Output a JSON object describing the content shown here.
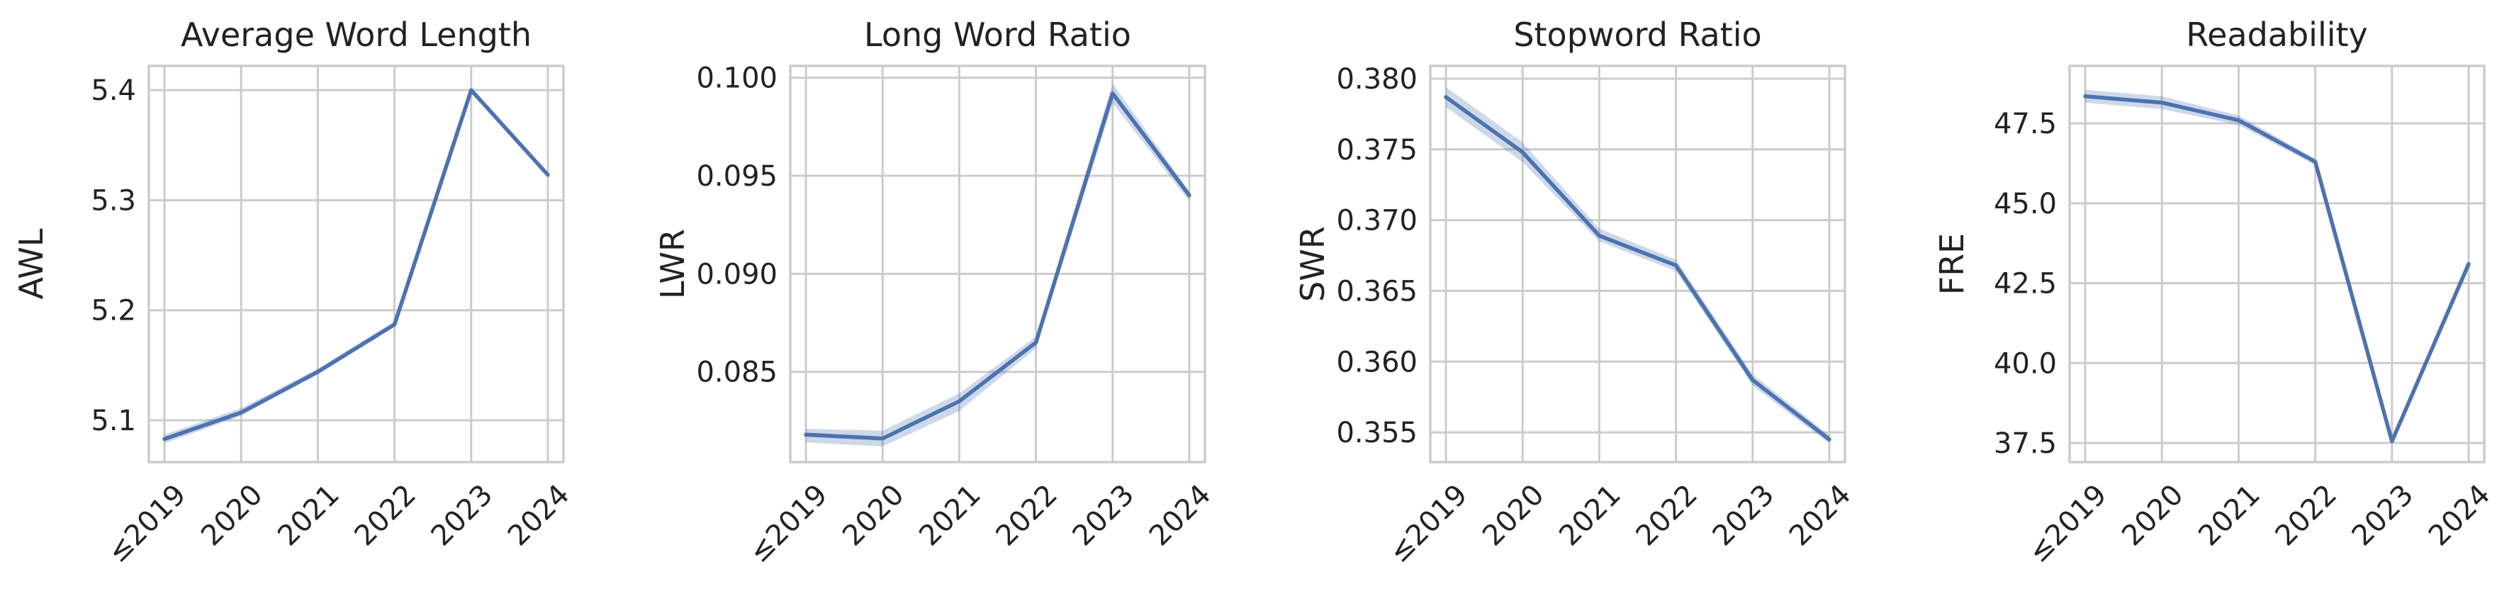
{
  "figure": {
    "line_color": "#4c72b0",
    "band_color": "#4c72b0",
    "grid_color": "#cccccc",
    "spine_color": "#cccccc",
    "background": "#ffffff"
  },
  "chart_data": [
    {
      "type": "line",
      "title": "Average Word Length",
      "xlabel": "",
      "ylabel": "AWL",
      "categories": [
        "≤2019",
        "2020",
        "2021",
        "2022",
        "2023",
        "2024"
      ],
      "series": [
        {
          "values": [
            5.083,
            5.107,
            5.144,
            5.187,
            5.4,
            5.323
          ]
        }
      ],
      "ci_lower": [
        5.079,
        5.104,
        5.142,
        5.185,
        5.398,
        5.321
      ],
      "ci_upper": [
        5.087,
        5.111,
        5.147,
        5.19,
        5.403,
        5.325
      ],
      "ylim": [
        5.062,
        5.422
      ],
      "yticks": [
        5.1,
        5.2,
        5.3,
        5.4
      ],
      "ytick_labels": [
        "5.1",
        "5.2",
        "5.3",
        "5.4"
      ],
      "grid": true
    },
    {
      "type": "line",
      "title": "Long Word Ratio",
      "xlabel": "",
      "ylabel": "LWR",
      "categories": [
        "≤2019",
        "2020",
        "2021",
        "2022",
        "2023",
        "2024"
      ],
      "series": [
        {
          "values": [
            0.0818,
            0.0816,
            0.0835,
            0.0865,
            0.0992,
            0.094
          ]
        }
      ],
      "ci_lower": [
        0.0814,
        0.0812,
        0.083,
        0.0862,
        0.0987,
        0.0937
      ],
      "ci_upper": [
        0.0821,
        0.082,
        0.0839,
        0.0868,
        0.0997,
        0.0942
      ],
      "ylim": [
        0.0804,
        0.1006
      ],
      "yticks": [
        0.085,
        0.09,
        0.095,
        0.1
      ],
      "ytick_labels": [
        "0.085",
        "0.090",
        "0.095",
        "0.100"
      ],
      "grid": true
    },
    {
      "type": "line",
      "title": "Stopword Ratio",
      "xlabel": "",
      "ylabel": "SWR",
      "categories": [
        "≤2019",
        "2020",
        "2021",
        "2022",
        "2023",
        "2024"
      ],
      "series": [
        {
          "values": [
            0.3787,
            0.3748,
            0.3689,
            0.3668,
            0.3587,
            0.3545
          ]
        }
      ],
      "ci_lower": [
        0.378,
        0.3741,
        0.3685,
        0.3664,
        0.3583,
        0.3542
      ],
      "ci_upper": [
        0.3794,
        0.3755,
        0.3694,
        0.3672,
        0.3591,
        0.3548
      ],
      "ylim": [
        0.3529,
        0.3809
      ],
      "yticks": [
        0.355,
        0.36,
        0.365,
        0.37,
        0.375,
        0.38
      ],
      "ytick_labels": [
        "0.355",
        "0.360",
        "0.365",
        "0.370",
        "0.375",
        "0.380"
      ],
      "grid": true
    },
    {
      "type": "line",
      "title": "Readability",
      "xlabel": "",
      "ylabel": "FRE",
      "categories": [
        "≤2019",
        "2020",
        "2021",
        "2022",
        "2023",
        "2024"
      ],
      "series": [
        {
          "values": [
            48.35,
            48.15,
            47.6,
            46.3,
            37.55,
            43.1
          ]
        }
      ],
      "ci_lower": [
        48.15,
        47.95,
        47.45,
        46.2,
        37.45,
        43.0
      ],
      "ci_upper": [
        48.55,
        48.35,
        47.75,
        46.4,
        37.65,
        43.2
      ],
      "ylim": [
        36.9,
        49.3
      ],
      "yticks": [
        37.5,
        40.0,
        42.5,
        45.0,
        47.5
      ],
      "ytick_labels": [
        "37.5",
        "40.0",
        "42.5",
        "45.0",
        "47.5"
      ],
      "grid": true
    }
  ]
}
